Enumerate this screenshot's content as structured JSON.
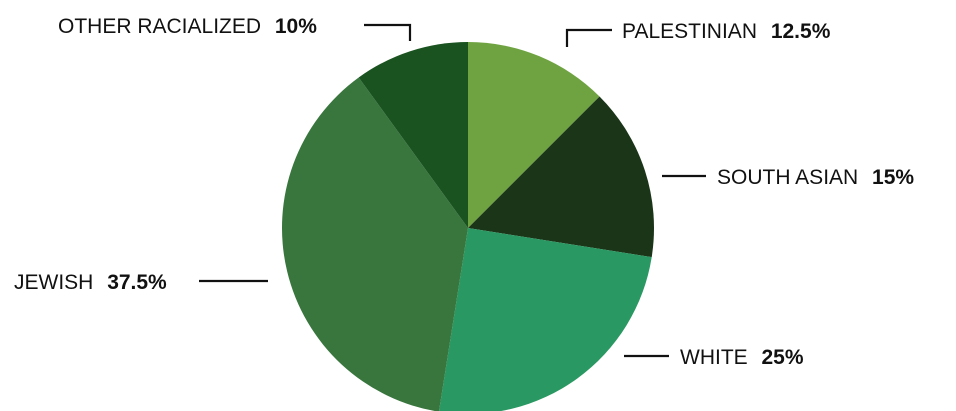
{
  "chart_data": {
    "type": "pie",
    "title": "",
    "slices": [
      {
        "label": "PALESTINIAN",
        "value": 12.5,
        "value_label": "12.5%",
        "color": "#6fa341"
      },
      {
        "label": "SOUTH ASIAN",
        "value": 15,
        "value_label": "15%",
        "color": "#1b3519"
      },
      {
        "label": "WHITE",
        "value": 25,
        "value_label": "25%",
        "color": "#2a9862"
      },
      {
        "label": "JEWISH",
        "value": 37.5,
        "value_label": "37.5%",
        "color": "#38763d"
      },
      {
        "label": "OTHER RACIALIZED",
        "value": 10,
        "value_label": "10%",
        "color": "#1a5320"
      }
    ],
    "start_angle_deg": 0,
    "direction": "clockwise",
    "legend": "none",
    "labels": "outside with leader lines"
  }
}
